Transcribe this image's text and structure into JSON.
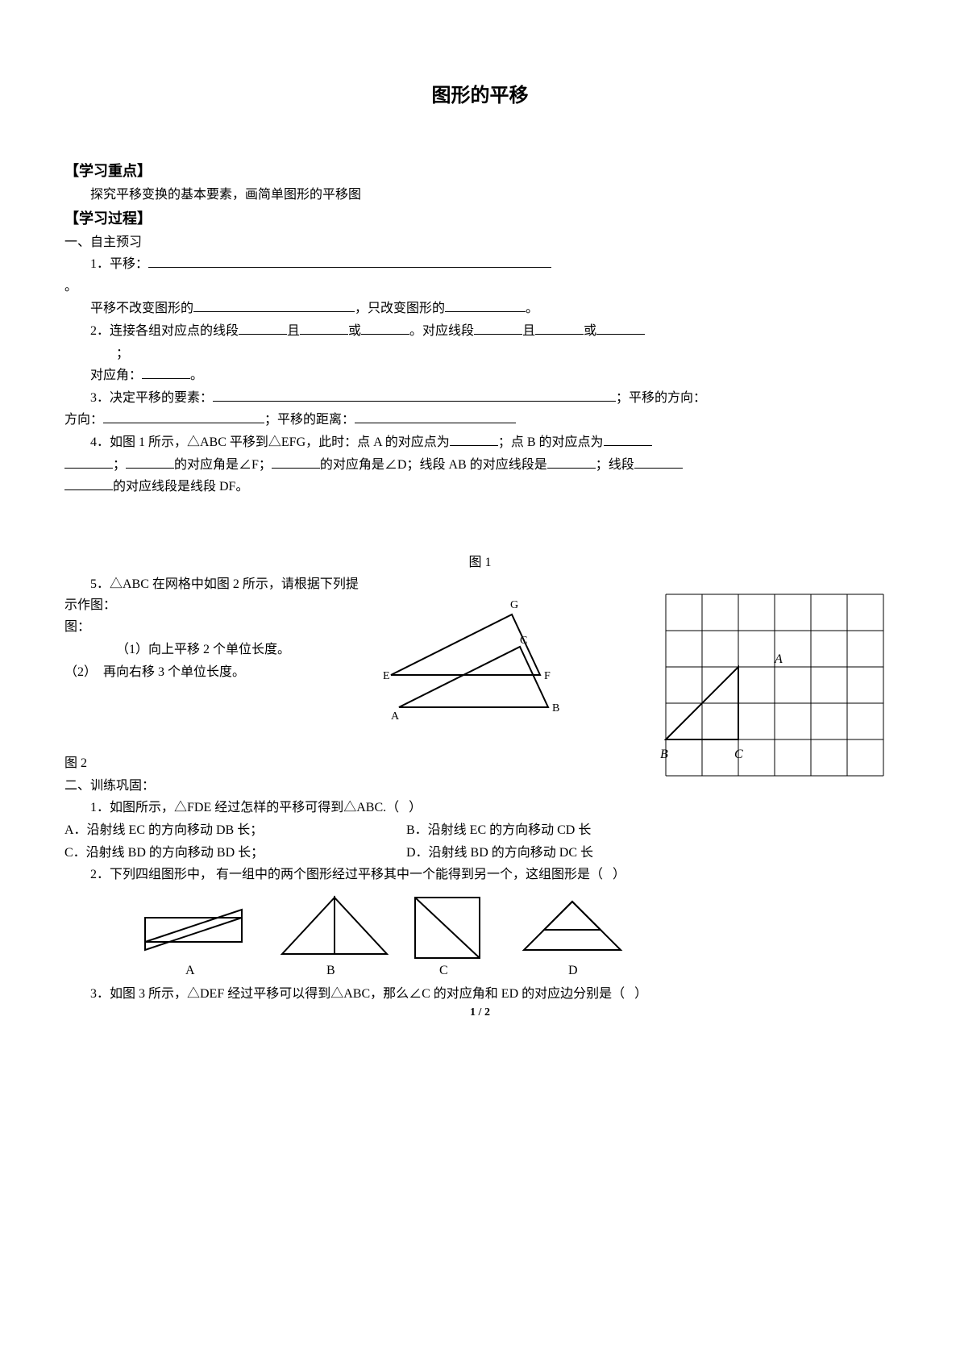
{
  "title": "图形的平移",
  "sec1_header": "【学习重点】",
  "sec1_text": "探究平移变换的基本要素，画简单图形的平移图",
  "sec2_header": "【学习过程】",
  "part1_header": "一、自主预习",
  "q1_label": "1．平移：",
  "q1_a": "平移不改变图形的",
  "q1_b": "，只改变图形的",
  "q1_c": "。",
  "q2_label": "2．连接各组对应点的线段",
  "q2_a": "且",
  "q2_b": "或",
  "q2_c": "。对应线段",
  "q2_d": "且",
  "q2_e": "或",
  "q2_f": "；",
  "q2_g": "对应角：",
  "q2_h": "。",
  "q3_label": "3．决定平移的要素：",
  "q3_a": "；平移的方向：",
  "q3_b": "；平移的距离：",
  "q4_text": "4．如图 1 所示，△ABC 平移到△EFG，此时：点 A 的对应点为",
  "q4_a": "；点 B 的对应点为",
  "q4_b": "；",
  "q4_c": "的对应角是∠F；",
  "q4_d": "的对应角是∠D；线段 AB 的对应线段是",
  "q4_e": "；线段",
  "q4_f": "的对应线段是线段 DF。",
  "fig1": "图 1",
  "q5_text": "5．△ABC 在网格中如图 2 所示，请根据下列提示作图：",
  "q5_a": "（1）向上平移 2 个单位长度。",
  "q5_b": "（2）  再向右移 3 个单位长度。",
  "fig2": "图 2",
  "part2_header": "二、训练巩固：",
  "t1_text": "1．如图所示，△FDE 经过怎样的平移可得到△ABC.（   ）",
  "t1_a": "A．沿射线 EC 的方向移动 DB 长；",
  "t1_b": "B．沿射线 EC 的方向移动 CD 长",
  "t1_c": "C．沿射线 BD 的方向移动 BD 长；",
  "t1_d": "D．沿射线 BD 的方向移动 DC 长",
  "t2_text": "2．下列四组图形中， 有一组中的两个图形经过平移其中一个能得到另一个，这组图形是（   ）",
  "t3_text": "3．如图 3 所示，△DEF 经过平移可以得到△ABC，那么∠C 的对应角和 ED 的对应边分别是（   ）",
  "opt_A": "A",
  "opt_B": "B",
  "opt_C": "C",
  "opt_D": "D",
  "pagenum": "1 / 2",
  "tri_labels": {
    "G": "G",
    "C": "C",
    "E": "E",
    "F": "F",
    "A": "A",
    "Av": "A",
    "B": "B",
    "Cv": "C"
  },
  "grid": {
    "cols": 6,
    "rows": 5,
    "cell": 45,
    "stroke": "#000000"
  },
  "colors": {
    "text": "#000000",
    "bg": "#ffffff",
    "line": "#000000"
  }
}
